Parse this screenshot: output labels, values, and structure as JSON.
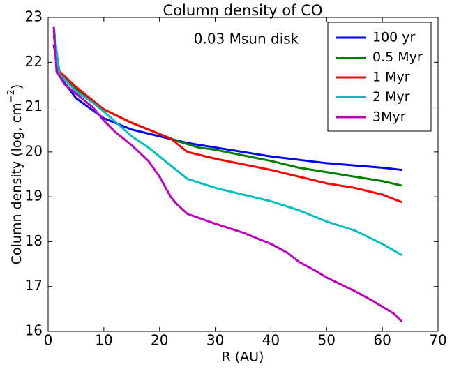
{
  "chart_data": {
    "type": "line",
    "title": "Column density of CO",
    "annotation": "0.03 Msun disk",
    "xlabel": "R (AU)",
    "ylabel": [
      "Column density (log, cm",
      "−2",
      ")"
    ],
    "xlim": [
      0,
      70
    ],
    "xticks": [
      0,
      10,
      20,
      30,
      40,
      50,
      60,
      70
    ],
    "ylim": [
      16,
      23
    ],
    "yticks": [
      16,
      17,
      18,
      19,
      20,
      21,
      22,
      23
    ],
    "grid": false,
    "legend": "upper right",
    "series": [
      {
        "name": "100 yr",
        "color": "#0000ff",
        "x": [
          1,
          2,
          5,
          10,
          15,
          20,
          25,
          30,
          40,
          50,
          60,
          63.5
        ],
        "values": [
          22.4,
          21.7,
          21.2,
          20.75,
          20.5,
          20.35,
          20.2,
          20.1,
          19.9,
          19.75,
          19.65,
          19.6
        ]
      },
      {
        "name": "0.5 Myr",
        "color": "#008000",
        "x": [
          1,
          2,
          5,
          10,
          15,
          20,
          23,
          27,
          30,
          40,
          45,
          50,
          55,
          60,
          63.5
        ],
        "values": [
          22.6,
          21.8,
          21.4,
          20.95,
          20.65,
          20.4,
          20.25,
          20.1,
          20.05,
          19.8,
          19.65,
          19.55,
          19.45,
          19.35,
          19.25
        ]
      },
      {
        "name": "1 Myr",
        "color": "#ff0000",
        "x": [
          1,
          2,
          5,
          10,
          15,
          20,
          22,
          25,
          30,
          40,
          50,
          55,
          60,
          63.5
        ],
        "values": [
          22.7,
          21.8,
          21.45,
          20.95,
          20.65,
          20.4,
          20.3,
          20.0,
          19.85,
          19.6,
          19.3,
          19.2,
          19.05,
          18.88
        ]
      },
      {
        "name": "2 Myr",
        "color": "#00bfbf",
        "x": [
          1,
          2,
          5,
          8,
          10,
          15,
          18,
          20,
          23,
          25,
          30,
          35,
          40,
          45,
          50,
          55,
          60,
          63.5
        ],
        "values": [
          22.8,
          21.75,
          21.35,
          21.1,
          20.9,
          20.35,
          20.1,
          19.9,
          19.6,
          19.4,
          19.2,
          19.05,
          18.9,
          18.7,
          18.45,
          18.25,
          17.95,
          17.7
        ]
      },
      {
        "name": "3Myr",
        "color": "#bf00bf",
        "x": [
          1,
          1.5,
          3,
          5,
          8,
          10,
          12,
          15,
          18,
          20,
          22,
          23,
          25,
          30,
          35,
          40,
          43,
          45,
          48,
          50,
          55,
          58,
          60,
          62,
          63.5
        ],
        "values": [
          22.8,
          21.8,
          21.5,
          21.3,
          21.0,
          20.7,
          20.45,
          20.15,
          19.8,
          19.45,
          19.0,
          18.85,
          18.62,
          18.4,
          18.2,
          17.95,
          17.75,
          17.55,
          17.35,
          17.2,
          16.9,
          16.7,
          16.55,
          16.4,
          16.22
        ]
      }
    ]
  }
}
